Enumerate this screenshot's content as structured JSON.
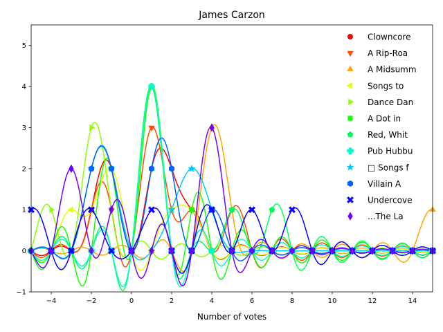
{
  "chart_data": {
    "type": "line",
    "title": "James Carzon",
    "xlabel": "Number of votes",
    "ylabel": "",
    "xlim": [
      -5,
      15
    ],
    "ylim": [
      -1,
      5.5
    ],
    "xticks": [
      -4,
      -2,
      0,
      2,
      4,
      6,
      8,
      10,
      12,
      14
    ],
    "yticks": [
      -1,
      0,
      1,
      2,
      3,
      4,
      5
    ],
    "grid": false,
    "legend_position": "top-right",
    "x": [
      -5,
      -4,
      -3,
      -2,
      -1,
      0,
      1,
      2,
      3,
      4,
      5,
      6,
      7,
      8,
      9,
      10,
      11,
      12,
      13,
      14,
      15
    ],
    "series": [
      {
        "name": "Clowncore",
        "marker": "circle",
        "color": "#ff0000",
        "values": [
          0,
          0,
          0,
          1,
          2,
          0,
          2,
          2,
          1,
          0,
          0,
          0,
          0,
          0,
          0,
          0,
          0,
          0,
          0,
          0,
          0
        ]
      },
      {
        "name": "A Rip-Roa",
        "marker": "triangle-down",
        "color": "#ff4d00",
        "values": [
          0,
          0,
          0,
          1,
          1,
          0,
          3,
          1,
          1,
          0,
          1,
          0,
          0,
          0,
          0,
          0,
          0,
          0,
          0,
          0,
          0
        ]
      },
      {
        "name": "A Midsumm",
        "marker": "triangle-up",
        "color": "#ffa500",
        "values": [
          0,
          0,
          0,
          0,
          0,
          0,
          0,
          0,
          0,
          3,
          1,
          0,
          0,
          0,
          0,
          0,
          0,
          0,
          0,
          0,
          1
        ]
      },
      {
        "name": "Songs to",
        "marker": "triangle-left",
        "color": "#e6ff00",
        "values": [
          0,
          0,
          1,
          1,
          2,
          0,
          0,
          1,
          1,
          0,
          0,
          0,
          0,
          0,
          0,
          0,
          0,
          0,
          0,
          0,
          0
        ]
      },
      {
        "name": "Dance Dan",
        "marker": "triangle-right",
        "color": "#8cff00",
        "values": [
          0,
          1,
          0,
          3,
          1,
          0,
          0,
          0,
          0,
          0,
          0,
          0,
          0,
          0,
          0,
          0,
          0,
          0,
          0,
          0,
          0
        ]
      },
      {
        "name": "A Dot in",
        "marker": "square",
        "color": "#1aff00",
        "values": [
          0,
          0,
          0,
          0,
          2,
          0,
          4,
          0,
          1,
          0,
          0,
          0,
          0,
          0,
          0,
          0,
          0,
          0,
          0,
          0,
          0
        ]
      },
      {
        "name": "Red, Whit",
        "marker": "pentagon",
        "color": "#00ff5a",
        "values": [
          0,
          0,
          0,
          0,
          0,
          0,
          4,
          0,
          0,
          0,
          1,
          0,
          1,
          0,
          0,
          0,
          0,
          0,
          0,
          0,
          0
        ]
      },
      {
        "name": "Pub Hubbu",
        "marker": "plus",
        "color": "#00ffc8",
        "values": [
          0,
          0,
          0,
          0,
          0,
          0,
          4,
          0,
          0,
          0,
          0,
          0,
          0,
          0,
          0,
          0,
          0,
          0,
          0,
          0,
          0
        ]
      },
      {
        "name": "□ Songs f",
        "marker": "star",
        "color": "#00c8ff",
        "values": [
          0,
          0,
          0,
          2,
          2,
          0,
          0,
          1,
          2,
          1,
          0,
          0,
          0,
          0,
          0,
          0,
          0,
          0,
          0,
          0,
          0
        ]
      },
      {
        "name": "Villain A",
        "marker": "hexagon",
        "color": "#0064ff",
        "values": [
          0,
          0,
          0,
          2,
          2,
          0,
          2,
          2,
          0,
          1,
          0,
          0,
          0,
          0,
          0,
          0,
          0,
          0,
          0,
          0,
          0
        ]
      },
      {
        "name": "Undercove",
        "marker": "x",
        "color": "#0a00ff",
        "values": [
          1,
          0,
          0,
          1,
          0,
          0,
          1,
          0,
          0,
          1,
          0,
          1,
          0,
          1,
          0,
          0,
          0,
          0,
          0,
          0,
          0
        ]
      },
      {
        "name": "...The La",
        "marker": "diamond",
        "color": "#7300ff",
        "values": [
          0,
          0,
          2,
          0,
          1,
          0,
          0,
          0,
          0,
          3,
          0,
          0,
          0,
          0,
          0,
          0,
          0,
          0,
          0,
          0,
          0
        ]
      }
    ]
  }
}
